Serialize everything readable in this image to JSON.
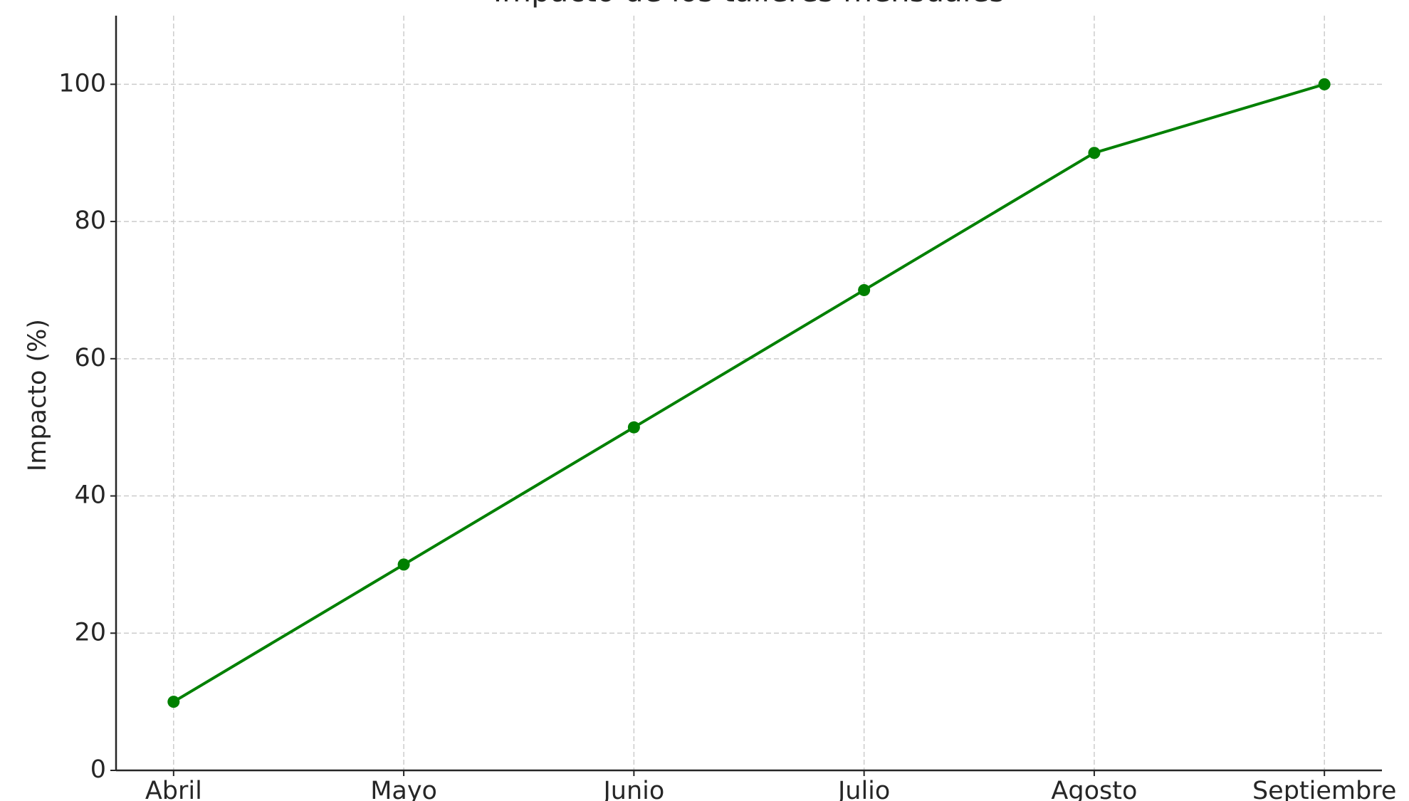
{
  "chart_data": {
    "type": "line",
    "title": "Impacto de los talleres mensuales",
    "y_label": "Impacto (%)",
    "categories": [
      "Abril",
      "Mayo",
      "Junio",
      "Julio",
      "Agosto",
      "Septiembre"
    ],
    "series": [
      {
        "name": "Impacto",
        "color": "#008000",
        "values": [
          10,
          30,
          50,
          70,
          90,
          100
        ]
      }
    ],
    "ylim": [
      0,
      110
    ],
    "yticks": [
      0,
      20,
      40,
      60,
      80,
      100
    ],
    "grid": true
  }
}
